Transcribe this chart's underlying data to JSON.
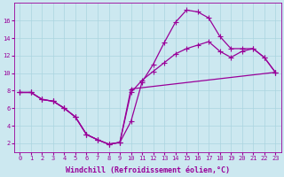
{
  "background_color": "#cce8f0",
  "grid_color": "#aad4e0",
  "line_color": "#990099",
  "marker": "+",
  "markersize": 4,
  "linewidth": 0.9,
  "xlim": [
    -0.5,
    23.5
  ],
  "ylim": [
    1,
    18
  ],
  "xlabel": "Windchill (Refroidissement éolien,°C)",
  "xlabel_fontsize": 6,
  "tick_fontsize": 5,
  "xticks": [
    0,
    1,
    2,
    3,
    4,
    5,
    6,
    7,
    8,
    9,
    10,
    11,
    12,
    13,
    14,
    15,
    16,
    17,
    18,
    19,
    20,
    21,
    22,
    23
  ],
  "yticks": [
    2,
    4,
    6,
    8,
    10,
    12,
    14,
    16
  ],
  "line1_x": [
    0,
    1,
    2,
    3,
    4,
    5,
    6,
    7,
    8,
    9,
    10,
    11,
    12,
    13,
    14,
    15,
    16,
    17,
    18,
    19,
    20,
    21,
    22,
    23
  ],
  "line1_y": [
    7.8,
    7.8,
    7.0,
    6.8,
    6.0,
    5.0,
    3.0,
    2.4,
    1.9,
    2.1,
    4.5,
    9.0,
    11.0,
    13.5,
    15.8,
    17.2,
    17.0,
    16.3,
    14.2,
    12.8,
    12.8,
    12.8,
    11.8,
    10.1
  ],
  "line2_x": [
    0,
    1,
    2,
    3,
    4,
    5,
    6,
    7,
    8,
    9,
    10,
    11,
    12,
    13,
    14,
    15,
    16,
    17,
    18,
    19,
    20,
    21,
    22,
    23
  ],
  "line2_y": [
    7.8,
    7.8,
    7.0,
    6.8,
    6.0,
    5.0,
    3.0,
    2.4,
    1.9,
    2.1,
    7.8,
    9.2,
    10.2,
    11.2,
    12.2,
    12.8,
    13.2,
    13.6,
    12.5,
    11.8,
    12.5,
    12.8,
    11.8,
    10.1
  ],
  "line3_x": [
    0,
    1,
    2,
    3,
    4,
    5,
    6,
    7,
    8,
    9,
    10,
    23
  ],
  "line3_y": [
    7.8,
    7.8,
    7.0,
    6.8,
    6.0,
    5.0,
    3.0,
    2.4,
    1.9,
    2.1,
    8.2,
    10.1
  ]
}
